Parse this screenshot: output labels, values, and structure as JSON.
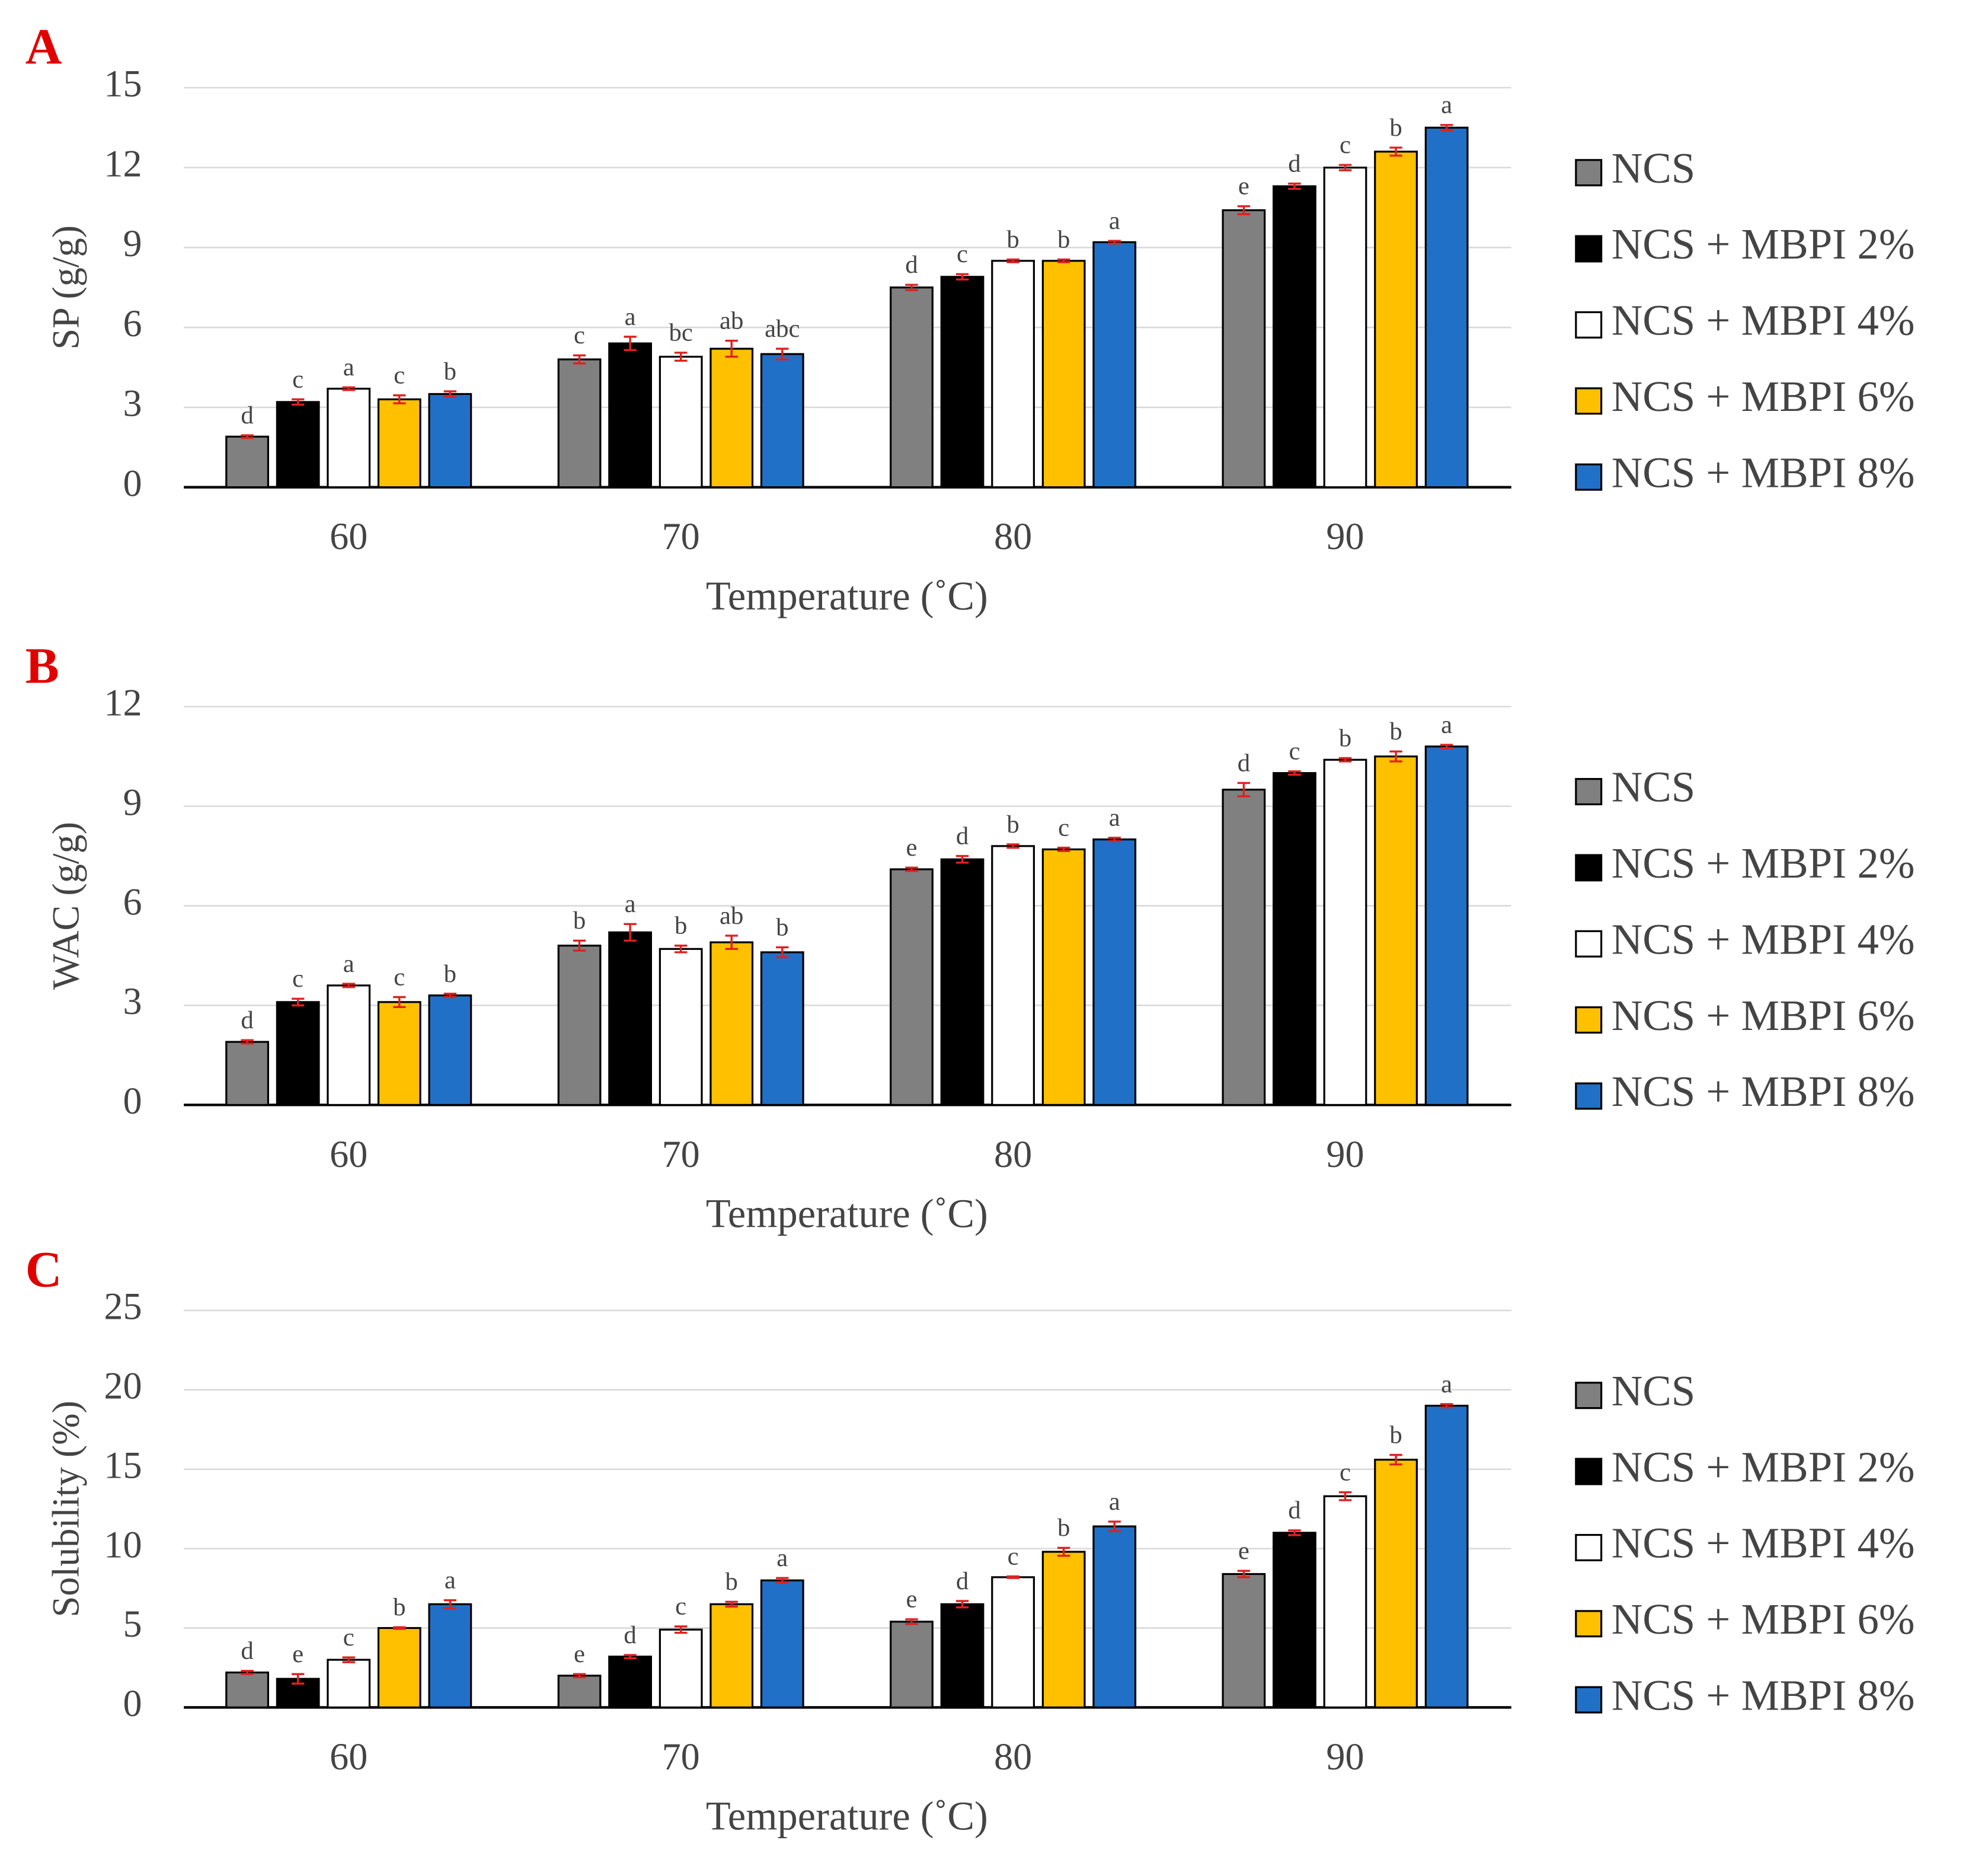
{
  "chart_data": [
    {
      "type": "bar",
      "panel": "A",
      "ylabel": "SP (g/g)",
      "xlabel": "Temperature (˚C)",
      "categories": [
        "60",
        "70",
        "80",
        "90"
      ],
      "ylim": [
        0,
        15
      ],
      "yticks": [
        0,
        3,
        6,
        9,
        12,
        15
      ],
      "grid": true,
      "series": [
        {
          "name": "NCS",
          "color": "#808080",
          "values": [
            1.9,
            4.8,
            7.5,
            10.4
          ],
          "errors": [
            0.05,
            0.15,
            0.1,
            0.15
          ],
          "letters": [
            "d",
            "c",
            "d",
            "e"
          ]
        },
        {
          "name": "NCS + MBPI 2%",
          "color": "#000000",
          "values": [
            3.2,
            5.4,
            7.9,
            11.3
          ],
          "errors": [
            0.1,
            0.25,
            0.1,
            0.1
          ],
          "letters": [
            "c",
            "a",
            "c",
            "d"
          ]
        },
        {
          "name": "NCS + MBPI 4%",
          "color": "#ffffff",
          "values": [
            3.7,
            4.9,
            8.5,
            12.0
          ],
          "errors": [
            0.05,
            0.15,
            0.05,
            0.1
          ],
          "letters": [
            "a",
            "bc",
            "b",
            "c"
          ]
        },
        {
          "name": "NCS + MBPI 6%",
          "color": "#ffc000",
          "values": [
            3.3,
            5.2,
            8.5,
            12.6
          ],
          "errors": [
            0.15,
            0.3,
            0.05,
            0.15
          ],
          "letters": [
            "c",
            "ab",
            "b",
            "b"
          ]
        },
        {
          "name": "NCS + MBPI 8%",
          "color": "#2070c8",
          "values": [
            3.5,
            5.0,
            9.2,
            13.5
          ],
          "errors": [
            0.1,
            0.2,
            0.05,
            0.1
          ],
          "letters": [
            "b",
            "abc",
            "a",
            "a"
          ]
        }
      ]
    },
    {
      "type": "bar",
      "panel": "B",
      "ylabel": "WAC (g/g)",
      "xlabel": "Temperature (˚C)",
      "categories": [
        "60",
        "70",
        "80",
        "90"
      ],
      "ylim": [
        0,
        12
      ],
      "yticks": [
        0,
        3,
        6,
        9,
        12
      ],
      "grid": true,
      "series": [
        {
          "name": "NCS",
          "color": "#808080",
          "values": [
            1.9,
            4.8,
            7.1,
            9.5
          ],
          "errors": [
            0.05,
            0.15,
            0.05,
            0.2
          ],
          "letters": [
            "d",
            "b",
            "e",
            "d"
          ]
        },
        {
          "name": "NCS + MBPI 2%",
          "color": "#000000",
          "values": [
            3.1,
            5.2,
            7.4,
            10.0
          ],
          "errors": [
            0.1,
            0.25,
            0.1,
            0.05
          ],
          "letters": [
            "c",
            "a",
            "d",
            "c"
          ]
        },
        {
          "name": "NCS + MBPI 4%",
          "color": "#ffffff",
          "values": [
            3.6,
            4.7,
            7.8,
            10.4
          ],
          "errors": [
            0.05,
            0.1,
            0.05,
            0.05
          ],
          "letters": [
            "a",
            "b",
            "b",
            "b"
          ]
        },
        {
          "name": "NCS + MBPI 6%",
          "color": "#ffc000",
          "values": [
            3.1,
            4.9,
            7.7,
            10.5
          ],
          "errors": [
            0.15,
            0.2,
            0.05,
            0.15
          ],
          "letters": [
            "c",
            "ab",
            "c",
            "b"
          ]
        },
        {
          "name": "NCS + MBPI 8%",
          "color": "#2070c8",
          "values": [
            3.3,
            4.6,
            8.0,
            10.8
          ],
          "errors": [
            0.05,
            0.15,
            0.05,
            0.05
          ],
          "letters": [
            "b",
            "b",
            "a",
            "a"
          ]
        }
      ]
    },
    {
      "type": "bar",
      "panel": "C",
      "ylabel": "Solubility (%)",
      "xlabel": "Temperature (˚C)",
      "categories": [
        "60",
        "70",
        "80",
        "90"
      ],
      "ylim": [
        0,
        25
      ],
      "yticks": [
        0,
        5,
        10,
        15,
        20,
        25
      ],
      "grid": true,
      "series": [
        {
          "name": "NCS",
          "color": "#808080",
          "values": [
            2.2,
            2.0,
            5.4,
            8.4
          ],
          "errors": [
            0.1,
            0.1,
            0.15,
            0.2
          ],
          "letters": [
            "d",
            "e",
            "e",
            "e"
          ]
        },
        {
          "name": "NCS + MBPI 2%",
          "color": "#000000",
          "values": [
            1.8,
            3.2,
            6.5,
            11.0
          ],
          "errors": [
            0.3,
            0.1,
            0.2,
            0.15
          ],
          "letters": [
            "e",
            "d",
            "d",
            "d"
          ]
        },
        {
          "name": "NCS + MBPI 4%",
          "color": "#ffffff",
          "values": [
            3.0,
            4.9,
            8.2,
            13.3
          ],
          "errors": [
            0.15,
            0.2,
            0.05,
            0.25
          ],
          "letters": [
            "c",
            "c",
            "c",
            "c"
          ]
        },
        {
          "name": "NCS + MBPI 6%",
          "color": "#ffc000",
          "values": [
            5.0,
            6.5,
            9.8,
            15.6
          ],
          "errors": [
            0.05,
            0.15,
            0.25,
            0.3
          ],
          "letters": [
            "b",
            "b",
            "b",
            "b"
          ]
        },
        {
          "name": "NCS + MBPI 8%",
          "color": "#2070c8",
          "values": [
            6.5,
            8.0,
            11.4,
            19.0
          ],
          "errors": [
            0.25,
            0.15,
            0.3,
            0.1
          ],
          "letters": [
            "a",
            "a",
            "a",
            "a"
          ]
        }
      ]
    }
  ]
}
